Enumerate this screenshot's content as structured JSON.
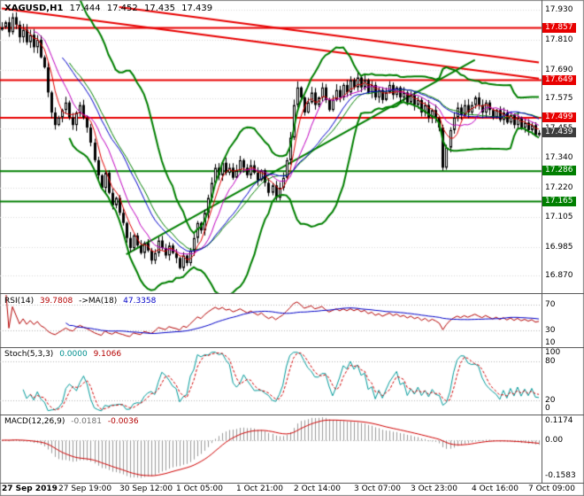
{
  "chart_data": {
    "type": "candlestick",
    "symbol": "XAGUSD",
    "timeframe": "H1",
    "title": "XAGUSD,H1 17.444 17.452 17.435 17.439",
    "title_parts": {
      "symbol": "XAGUSD,H1",
      "open": "17.444",
      "high": "17.452",
      "low": "17.435",
      "close": "17.439"
    },
    "price_axis": {
      "min": 16.8,
      "max": 17.965,
      "labels": [
        "17.930",
        "17.810",
        "17.690",
        "17.575",
        "17.455",
        "17.340",
        "17.220",
        "17.105",
        "16.985",
        "16.870"
      ]
    },
    "time_axis": {
      "labels": [
        "27 Sep 2019",
        "27 Sep 19:00",
        "30 Sep 12:00",
        "1 Oct 05:00",
        "1 Oct 21:00",
        "2 Oct 14:00",
        "3 Oct 07:00",
        "3 Oct 23:00",
        "4 Oct 16:00",
        "7 Oct 09:00"
      ],
      "bars": [
        0,
        16,
        33,
        49,
        66,
        82,
        99,
        115,
        132,
        148
      ]
    },
    "first_open": 17.85,
    "closes": [
      17.86,
      17.88,
      17.84,
      17.9,
      17.87,
      17.82,
      17.85,
      17.8,
      17.83,
      17.78,
      17.81,
      17.74,
      17.7,
      17.6,
      17.52,
      17.47,
      17.5,
      17.53,
      17.56,
      17.5,
      17.47,
      17.52,
      17.55,
      17.5,
      17.46,
      17.4,
      17.33,
      17.27,
      17.22,
      17.28,
      17.2,
      17.15,
      17.18,
      17.12,
      17.08,
      17.02,
      16.98,
      17.03,
      16.99,
      16.96,
      17.0,
      16.97,
      16.93,
      16.96,
      17.01,
      16.98,
      16.95,
      16.99,
      16.96,
      16.94,
      16.9,
      16.95,
      16.92,
      16.97,
      17.02,
      17.08,
      17.05,
      17.12,
      17.18,
      17.24,
      17.3,
      17.27,
      17.32,
      17.28,
      17.3,
      17.26,
      17.29,
      17.33,
      17.3,
      17.27,
      17.31,
      17.28,
      17.25,
      17.29,
      17.24,
      17.2,
      17.23,
      17.18,
      17.22,
      17.26,
      17.33,
      17.42,
      17.55,
      17.62,
      17.58,
      17.52,
      17.56,
      17.6,
      17.55,
      17.58,
      17.62,
      17.57,
      17.53,
      17.57,
      17.61,
      17.58,
      17.63,
      17.6,
      17.65,
      17.62,
      17.66,
      17.62,
      17.65,
      17.6,
      17.63,
      17.58,
      17.61,
      17.57,
      17.6,
      17.63,
      17.59,
      17.62,
      17.58,
      17.6,
      17.56,
      17.59,
      17.55,
      17.57,
      17.52,
      17.55,
      17.5,
      17.53,
      17.5,
      17.46,
      17.3,
      17.38,
      17.45,
      17.5,
      17.54,
      17.51,
      17.55,
      17.52,
      17.55,
      17.58,
      17.55,
      17.52,
      17.56,
      17.53,
      17.5,
      17.53,
      17.49,
      17.52,
      17.48,
      17.51,
      17.47,
      17.5,
      17.46,
      17.48,
      17.45,
      17.47,
      17.43,
      17.439
    ],
    "levels": {
      "resistance": [
        {
          "price": 17.857,
          "label": "17.857"
        },
        {
          "price": 17.649,
          "label": "17.649"
        },
        {
          "price": 17.499,
          "label": "17.499"
        }
      ],
      "support": [
        {
          "price": 17.286,
          "label": "17.286"
        },
        {
          "price": 17.165,
          "label": "17.165"
        }
      ],
      "current": {
        "price": 17.439,
        "label": "17.439"
      }
    },
    "trendlines": [
      {
        "color": "red",
        "b1": 0,
        "p1": 17.935,
        "b2": 151,
        "p2": 17.655
      },
      {
        "color": "red",
        "b1": 33,
        "p1": 17.94,
        "b2": 151,
        "p2": 17.72
      },
      {
        "color": "green",
        "b1": 35,
        "p1": 16.955,
        "b2": 133,
        "p2": 17.73
      }
    ],
    "overlays": {
      "bollinger": {
        "period": 20,
        "dev": 2.0
      },
      "mas": [
        {
          "period": 5,
          "color": "#e00000"
        },
        {
          "period": 10,
          "color": "#c000c0"
        },
        {
          "period": 18,
          "color": "#0000cc"
        }
      ]
    },
    "panels": {
      "rsi": {
        "name": "RSI(14)",
        "value": "39.7808",
        "ma_name": "->MA(18)",
        "ma_value": "47.3358",
        "period": 14,
        "ma_period": 18,
        "levels": [
          70,
          30
        ],
        "axis_labels": [
          "70",
          "30",
          "10"
        ],
        "range": [
          5,
          85
        ],
        "line_color": "#b40000",
        "ma_color": "#0000c8"
      },
      "stoch": {
        "name": "Stoch(5,3,3)",
        "value": "0.0000",
        "signal_value": "9.1066",
        "k": 5,
        "d": 3,
        "slowing": 3,
        "levels": [
          80,
          20
        ],
        "axis_labels": [
          "100",
          "80",
          "20",
          "0"
        ],
        "range": [
          0,
          100
        ],
        "k_color": "#009a9a",
        "d_color": "#d00000"
      },
      "macd": {
        "name": "MACD(12,26,9)",
        "value": "-0.0181",
        "signal_value": "-0.0036",
        "fast": 12,
        "slow": 26,
        "signal": 9,
        "axis_labels": [
          "0.1174",
          "0.00",
          "-0.1583"
        ],
        "hist_color": "#9a9a9a",
        "signal_color": "#d00000"
      }
    },
    "colors": {
      "bull": "#ffffff",
      "bear": "#000000",
      "wick": "#000000",
      "grid": "#d9d9d9",
      "level_dotted": "#b4b4b4",
      "resistance": "#e80000",
      "support": "#007f00",
      "bollinger": "#007f00",
      "border": "#808080"
    }
  }
}
